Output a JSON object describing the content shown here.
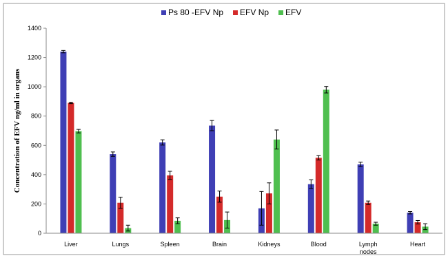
{
  "chart_data": {
    "type": "bar",
    "title": "",
    "xlabel": "",
    "ylabel": "Concentration of EFV ng/ml in organs",
    "ylim": [
      0,
      1400
    ],
    "yticks": [
      0,
      200,
      400,
      600,
      800,
      1000,
      1200,
      1400
    ],
    "grid": false,
    "legend_position": "top",
    "categories": [
      [
        "Liver"
      ],
      [
        "Lungs"
      ],
      [
        "Spleen"
      ],
      [
        "Brain"
      ],
      [
        "Kidneys"
      ],
      [
        "Blood"
      ],
      [
        "Lymph",
        "nodes"
      ],
      [
        "Heart"
      ]
    ],
    "series": [
      {
        "name": "Ps 80 -EFV Np",
        "color": "#3f3fb5",
        "values": [
          1240,
          540,
          620,
          735,
          170,
          335,
          470,
          140
        ],
        "errors": [
          8,
          15,
          18,
          35,
          115,
          30,
          15,
          8
        ]
      },
      {
        "name": "EFV Np",
        "color": "#d42a2a",
        "values": [
          890,
          208,
          395,
          250,
          272,
          515,
          208,
          75
        ],
        "errors": [
          5,
          38,
          28,
          38,
          72,
          15,
          12,
          12
        ]
      },
      {
        "name": "EFV",
        "color": "#4fbf4f",
        "values": [
          697,
          35,
          85,
          90,
          640,
          980,
          65,
          45
        ],
        "errors": [
          12,
          20,
          20,
          55,
          65,
          22,
          10,
          20
        ]
      }
    ]
  }
}
